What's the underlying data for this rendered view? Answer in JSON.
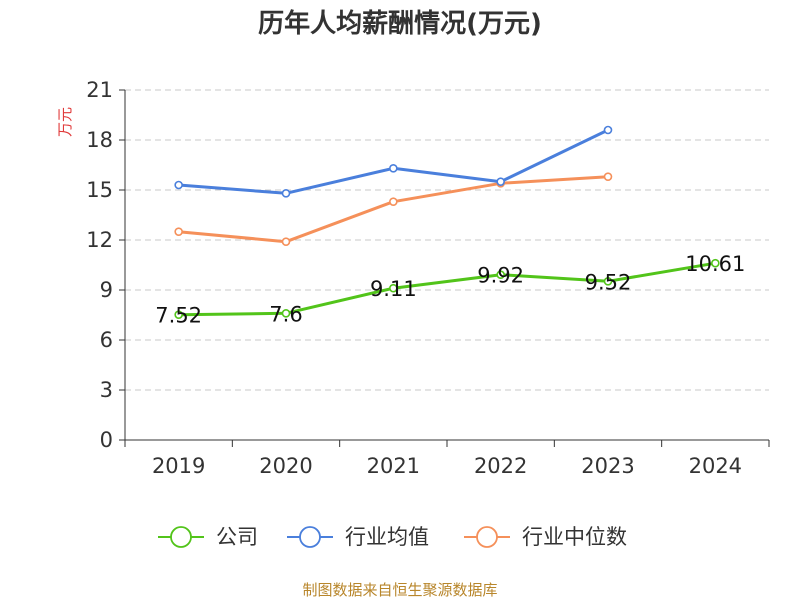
{
  "chart_data": {
    "type": "line",
    "title": "历年人均薪酬情况(万元)",
    "ylabel": "万元",
    "categories": [
      "2019",
      "2020",
      "2021",
      "2022",
      "2023",
      "2024"
    ],
    "ylim": [
      0,
      21
    ],
    "yticks": [
      0,
      3,
      6,
      9,
      12,
      15,
      18,
      21
    ],
    "grid": true,
    "legend_position": "bottom",
    "series": [
      {
        "name": "公司",
        "color": "#52c41a",
        "values": [
          7.52,
          7.6,
          9.11,
          9.92,
          9.52,
          10.61
        ],
        "labels": [
          "7.52",
          "7.6",
          "9.11",
          "9.92",
          "9.52",
          "10.61"
        ]
      },
      {
        "name": "行业均值",
        "color": "#4a7fdc",
        "values": [
          15.3,
          14.8,
          16.3,
          15.5,
          18.6,
          null
        ]
      },
      {
        "name": "行业中位数",
        "color": "#f5905a",
        "values": [
          12.5,
          11.9,
          14.3,
          15.4,
          15.8,
          null
        ]
      }
    ]
  },
  "source": "制图数据来自恒生聚源数据库"
}
